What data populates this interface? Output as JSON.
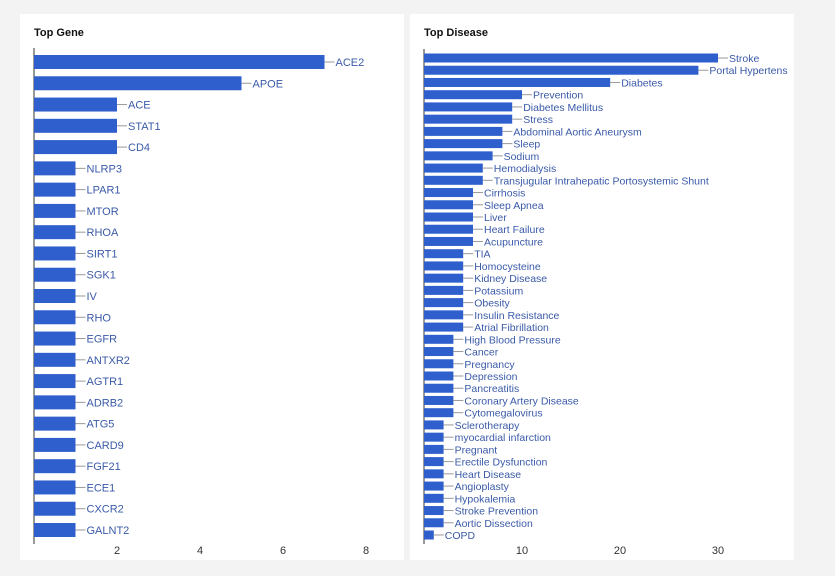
{
  "chart_data": [
    {
      "type": "bar",
      "orientation": "horizontal",
      "title": "Top Gene",
      "xlim": [
        0,
        8.4
      ],
      "xticks": [
        2,
        4,
        6,
        8
      ],
      "grid": false,
      "color": "#2f5fcc",
      "categories": [
        "ACE2",
        "APOE",
        "ACE",
        "STAT1",
        "CD4",
        "NLRP3",
        "LPAR1",
        "MTOR",
        "RHOA",
        "SIRT1",
        "SGK1",
        "IV",
        "RHO",
        "EGFR",
        "ANTXR2",
        "AGTR1",
        "ADRB2",
        "ATG5",
        "CARD9",
        "FGF21",
        "ECE1",
        "CXCR2",
        "GALNT2"
      ],
      "values": [
        7,
        5,
        2,
        2,
        2,
        1,
        1,
        1,
        1,
        1,
        1,
        1,
        1,
        1,
        1,
        1,
        1,
        1,
        1,
        1,
        1,
        1,
        1
      ]
    },
    {
      "type": "bar",
      "orientation": "horizontal",
      "title": "Top Disease",
      "xlim": [
        0,
        37
      ],
      "xticks": [
        10,
        20,
        30
      ],
      "grid": false,
      "color": "#2f5fcc",
      "categories": [
        "Stroke",
        "Portal Hypertens",
        "Diabetes",
        "Prevention",
        "Diabetes Mellitus",
        "Stress",
        "Abdominal Aortic Aneurysm",
        "Sleep",
        "Sodium",
        "Hemodialysis",
        "Transjugular Intrahepatic Portosystemic Shunt",
        "Cirrhosis",
        "Sleep Apnea",
        "Liver",
        "Heart Failure",
        "Acupuncture",
        "TIA",
        "Homocysteine",
        "Kidney Disease",
        "Potassium",
        "Obesity",
        "Insulin Resistance",
        "Atrial Fibrillation",
        "High Blood Pressure",
        "Cancer",
        "Pregnancy",
        "Depression",
        "Pancreatitis",
        "Coronary Artery Disease",
        "Cytomegalovirus",
        "Sclerotherapy",
        "myocardial infarction",
        "Pregnant",
        "Erectile Dysfunction",
        "Heart Disease",
        "Angioplasty",
        "Hypokalemia",
        "Stroke Prevention",
        "Aortic Dissection",
        "COPD"
      ],
      "values": [
        30,
        28,
        19,
        10,
        9,
        9,
        8,
        8,
        7,
        6,
        6,
        5,
        5,
        5,
        5,
        5,
        4,
        4,
        4,
        4,
        4,
        4,
        4,
        3,
        3,
        3,
        3,
        3,
        3,
        3,
        2,
        2,
        2,
        2,
        2,
        2,
        2,
        2,
        2,
        1
      ]
    }
  ]
}
